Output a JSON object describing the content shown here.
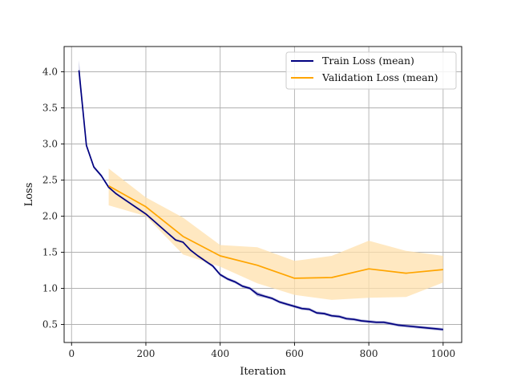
{
  "chart_data": {
    "type": "line",
    "title": "",
    "xlabel": "Iteration",
    "ylabel": "Loss",
    "xlim": [
      -20,
      1050
    ],
    "ylim": [
      0.25,
      4.35
    ],
    "xticks": [
      0,
      200,
      400,
      600,
      800,
      1000
    ],
    "yticks": [
      0.5,
      1.0,
      1.5,
      2.0,
      2.5,
      3.0,
      3.5,
      4.0
    ],
    "xtick_labels": [
      "0",
      "200",
      "400",
      "600",
      "800",
      "1000"
    ],
    "ytick_labels": [
      "0.5",
      "1.0",
      "1.5",
      "2.0",
      "2.5",
      "3.0",
      "3.5",
      "4.0"
    ],
    "grid": true,
    "legend_position": "top-right",
    "series": [
      {
        "name": "Train Loss (mean)",
        "color": "#000080",
        "band_color": "#7b7fc0",
        "x": [
          20,
          40,
          60,
          80,
          100,
          120,
          140,
          160,
          180,
          200,
          220,
          240,
          260,
          280,
          300,
          320,
          340,
          360,
          380,
          400,
          420,
          440,
          460,
          480,
          500,
          520,
          540,
          560,
          580,
          600,
          620,
          640,
          660,
          680,
          700,
          720,
          740,
          760,
          780,
          800,
          820,
          840,
          860,
          880,
          900,
          920,
          940,
          960,
          980,
          1000
        ],
        "y": [
          4.02,
          2.98,
          2.68,
          2.56,
          2.4,
          2.31,
          2.24,
          2.17,
          2.1,
          2.03,
          1.94,
          1.85,
          1.76,
          1.67,
          1.64,
          1.53,
          1.45,
          1.38,
          1.31,
          1.19,
          1.13,
          1.09,
          1.03,
          1.0,
          0.92,
          0.89,
          0.86,
          0.81,
          0.78,
          0.75,
          0.72,
          0.71,
          0.66,
          0.65,
          0.62,
          0.61,
          0.58,
          0.57,
          0.55,
          0.54,
          0.53,
          0.53,
          0.51,
          0.49,
          0.48,
          0.47,
          0.46,
          0.45,
          0.44,
          0.43
        ],
        "lower": [
          3.9,
          2.95,
          2.66,
          2.54,
          2.38,
          2.29,
          2.22,
          2.15,
          2.08,
          2.01,
          1.92,
          1.83,
          1.74,
          1.65,
          1.62,
          1.51,
          1.43,
          1.36,
          1.29,
          1.17,
          1.11,
          1.07,
          1.01,
          0.98,
          0.89,
          0.87,
          0.84,
          0.79,
          0.76,
          0.73,
          0.7,
          0.69,
          0.64,
          0.63,
          0.6,
          0.59,
          0.56,
          0.55,
          0.53,
          0.52,
          0.51,
          0.51,
          0.49,
          0.47,
          0.46,
          0.45,
          0.44,
          0.43,
          0.42,
          0.41
        ],
        "upper": [
          4.16,
          3.01,
          2.7,
          2.58,
          2.42,
          2.33,
          2.26,
          2.19,
          2.12,
          2.05,
          1.96,
          1.87,
          1.78,
          1.69,
          1.66,
          1.55,
          1.47,
          1.4,
          1.33,
          1.21,
          1.15,
          1.11,
          1.05,
          1.02,
          0.95,
          0.91,
          0.88,
          0.83,
          0.8,
          0.77,
          0.74,
          0.73,
          0.68,
          0.67,
          0.64,
          0.63,
          0.6,
          0.59,
          0.57,
          0.56,
          0.55,
          0.55,
          0.53,
          0.51,
          0.5,
          0.49,
          0.48,
          0.47,
          0.46,
          0.45
        ]
      },
      {
        "name": "Validation Loss (mean)",
        "color": "#FFA500",
        "band_color": "#ffe0ac",
        "x": [
          100,
          200,
          300,
          400,
          500,
          600,
          700,
          800,
          900,
          1000
        ],
        "y": [
          2.42,
          2.13,
          1.72,
          1.45,
          1.32,
          1.14,
          1.15,
          1.27,
          1.21,
          1.26
        ],
        "lower": [
          2.15,
          2.0,
          1.47,
          1.3,
          1.07,
          0.91,
          0.84,
          0.87,
          0.88,
          1.08
        ],
        "upper": [
          2.66,
          2.26,
          1.98,
          1.6,
          1.57,
          1.38,
          1.45,
          1.66,
          1.52,
          1.45
        ]
      }
    ]
  }
}
